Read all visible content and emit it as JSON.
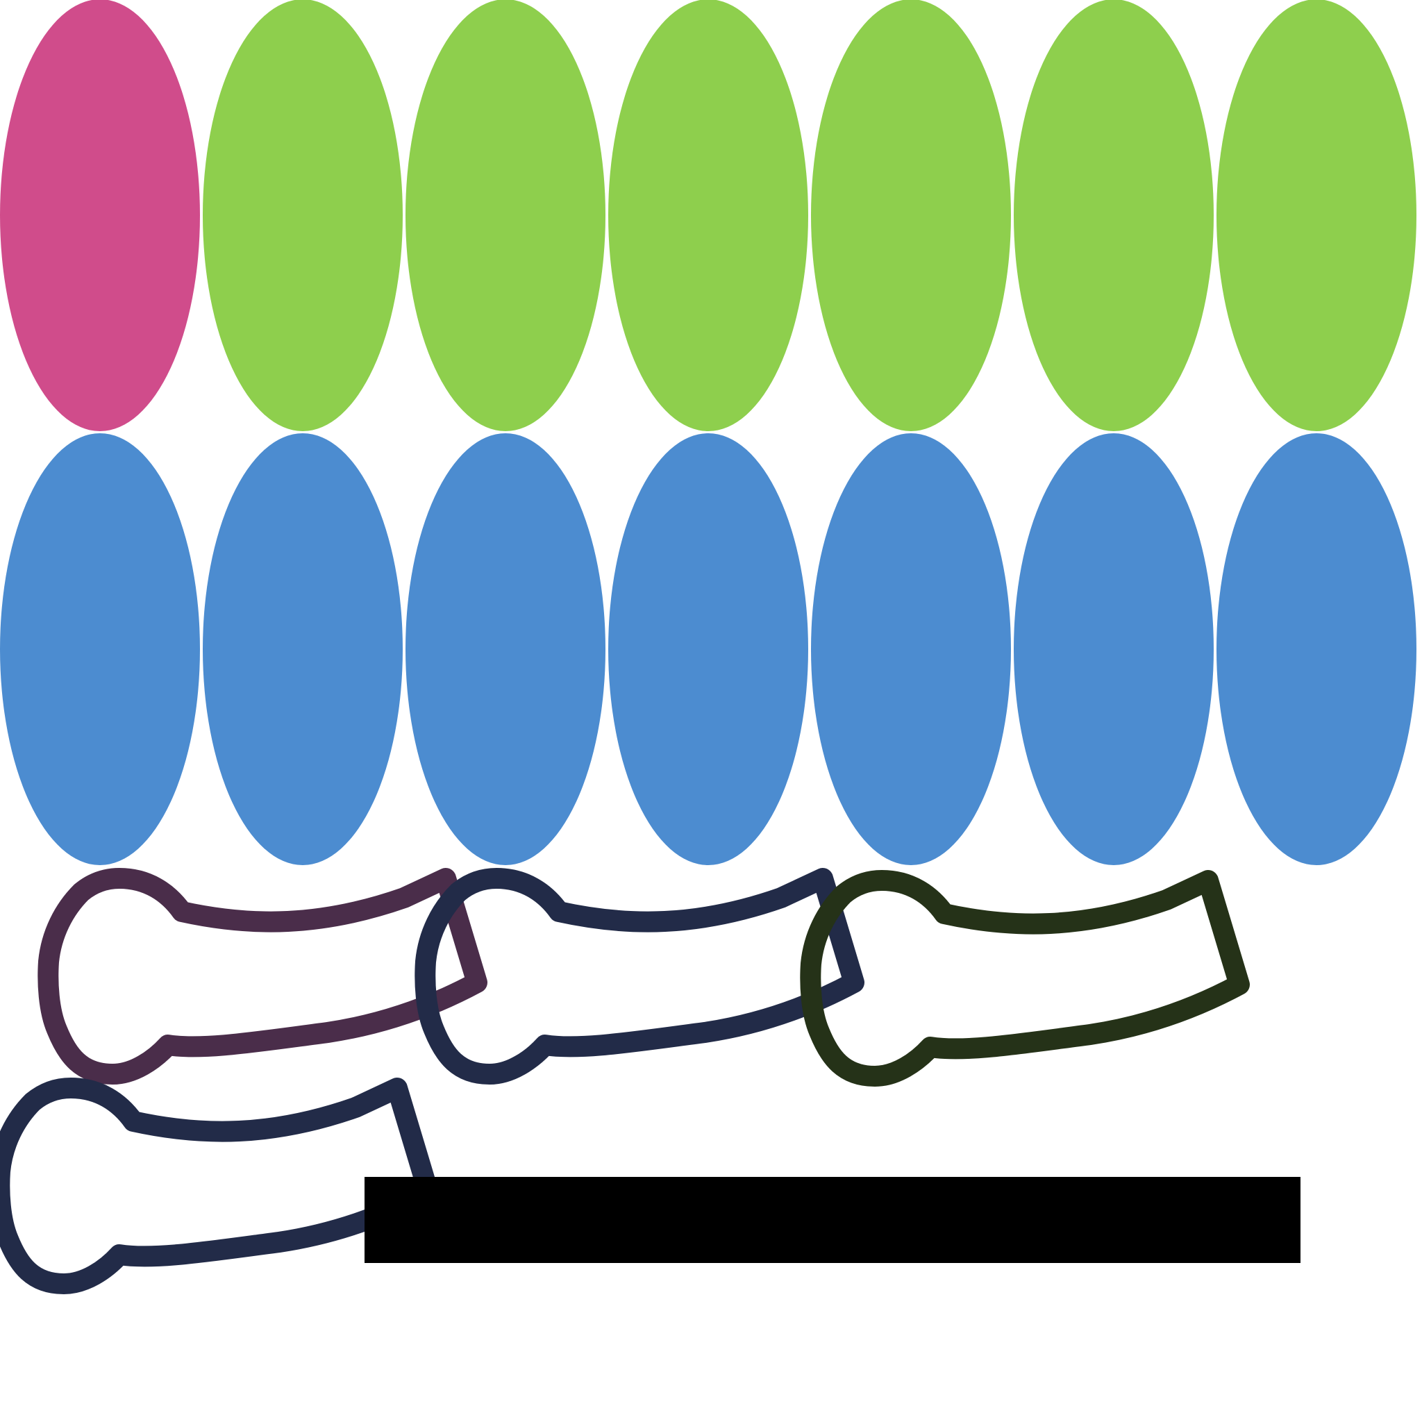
{
  "top_row": {
    "shapes": [
      {
        "color": "#D04C8B"
      },
      {
        "color": "#8ECF4D"
      },
      {
        "color": "#8ECF4D"
      },
      {
        "color": "#8ECF4D"
      },
      {
        "color": "#8ECF4D"
      },
      {
        "color": "#8ECF4D"
      },
      {
        "color": "#8ECF4D"
      }
    ]
  },
  "middle_row": {
    "shapes": [
      {
        "color": "#4C8CD0"
      },
      {
        "color": "#4C8CD0"
      },
      {
        "color": "#4C8CD0"
      },
      {
        "color": "#4C8CD0"
      },
      {
        "color": "#4C8CD0"
      },
      {
        "color": "#4C8CD0"
      },
      {
        "color": "#4C8CD0"
      }
    ]
  },
  "hook_row": {
    "shapes": [
      {
        "stroke": "#4A2D4A"
      },
      {
        "stroke": "#222B48"
      },
      {
        "stroke": "#253218"
      },
      {
        "stroke": "#222B48"
      }
    ]
  },
  "bar": {
    "color": "#000000"
  }
}
